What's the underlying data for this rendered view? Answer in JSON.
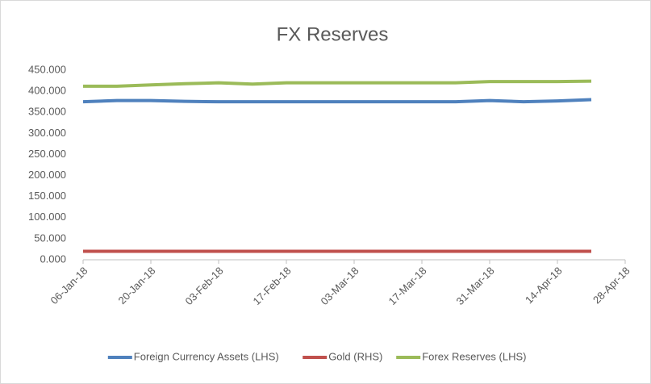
{
  "chart_data": {
    "type": "line",
    "title": "FX Reserves",
    "x": [
      "06-Jan-18",
      "13-Jan-18",
      "20-Jan-18",
      "27-Jan-18",
      "03-Feb-18",
      "10-Feb-18",
      "17-Feb-18",
      "24-Feb-18",
      "03-Mar-18",
      "10-Mar-18",
      "17-Mar-18",
      "24-Mar-18",
      "31-Mar-18",
      "07-Apr-18",
      "14-Apr-18",
      "21-Apr-18"
    ],
    "series": [
      {
        "name": "Foreign Currency Assets (LHS)",
        "color": "#4f81bd",
        "values": [
          375,
          378,
          378,
          376,
          375,
          375,
          375,
          375,
          375,
          375,
          375,
          375,
          378,
          375,
          377,
          380
        ]
      },
      {
        "name": "Gold (RHS)",
        "color": "#c0504d",
        "values": [
          20,
          20,
          20,
          20,
          20,
          20,
          20,
          20,
          20,
          20,
          20,
          20,
          20,
          20,
          20,
          20
        ]
      },
      {
        "name": "Forex Reserves (LHS)",
        "color": "#9bbb59",
        "values": [
          412,
          412,
          415,
          418,
          420,
          417,
          420,
          420,
          420,
          420,
          420,
          420,
          423,
          423,
          423,
          424
        ]
      }
    ],
    "xlim": [
      "06-Jan-18",
      "28-Apr-18"
    ],
    "xticks": [
      "06-Jan-18",
      "20-Jan-18",
      "03-Feb-18",
      "17-Feb-18",
      "03-Mar-18",
      "17-Mar-18",
      "31-Mar-18",
      "14-Apr-18",
      "28-Apr-18"
    ],
    "ylim": [
      0,
      450
    ],
    "yticks": [
      {
        "value": 0,
        "label": "0.000"
      },
      {
        "value": 50,
        "label": "50.000"
      },
      {
        "value": 100,
        "label": "100.000"
      },
      {
        "value": 150,
        "label": "150.000"
      },
      {
        "value": 200,
        "label": "200.000"
      },
      {
        "value": 250,
        "label": "250.000"
      },
      {
        "value": 300,
        "label": "300.000"
      },
      {
        "value": 350,
        "label": "350.000"
      },
      {
        "value": 400,
        "label": "400.000"
      },
      {
        "value": 450,
        "label": "450.000"
      }
    ],
    "legend": "bottom"
  }
}
